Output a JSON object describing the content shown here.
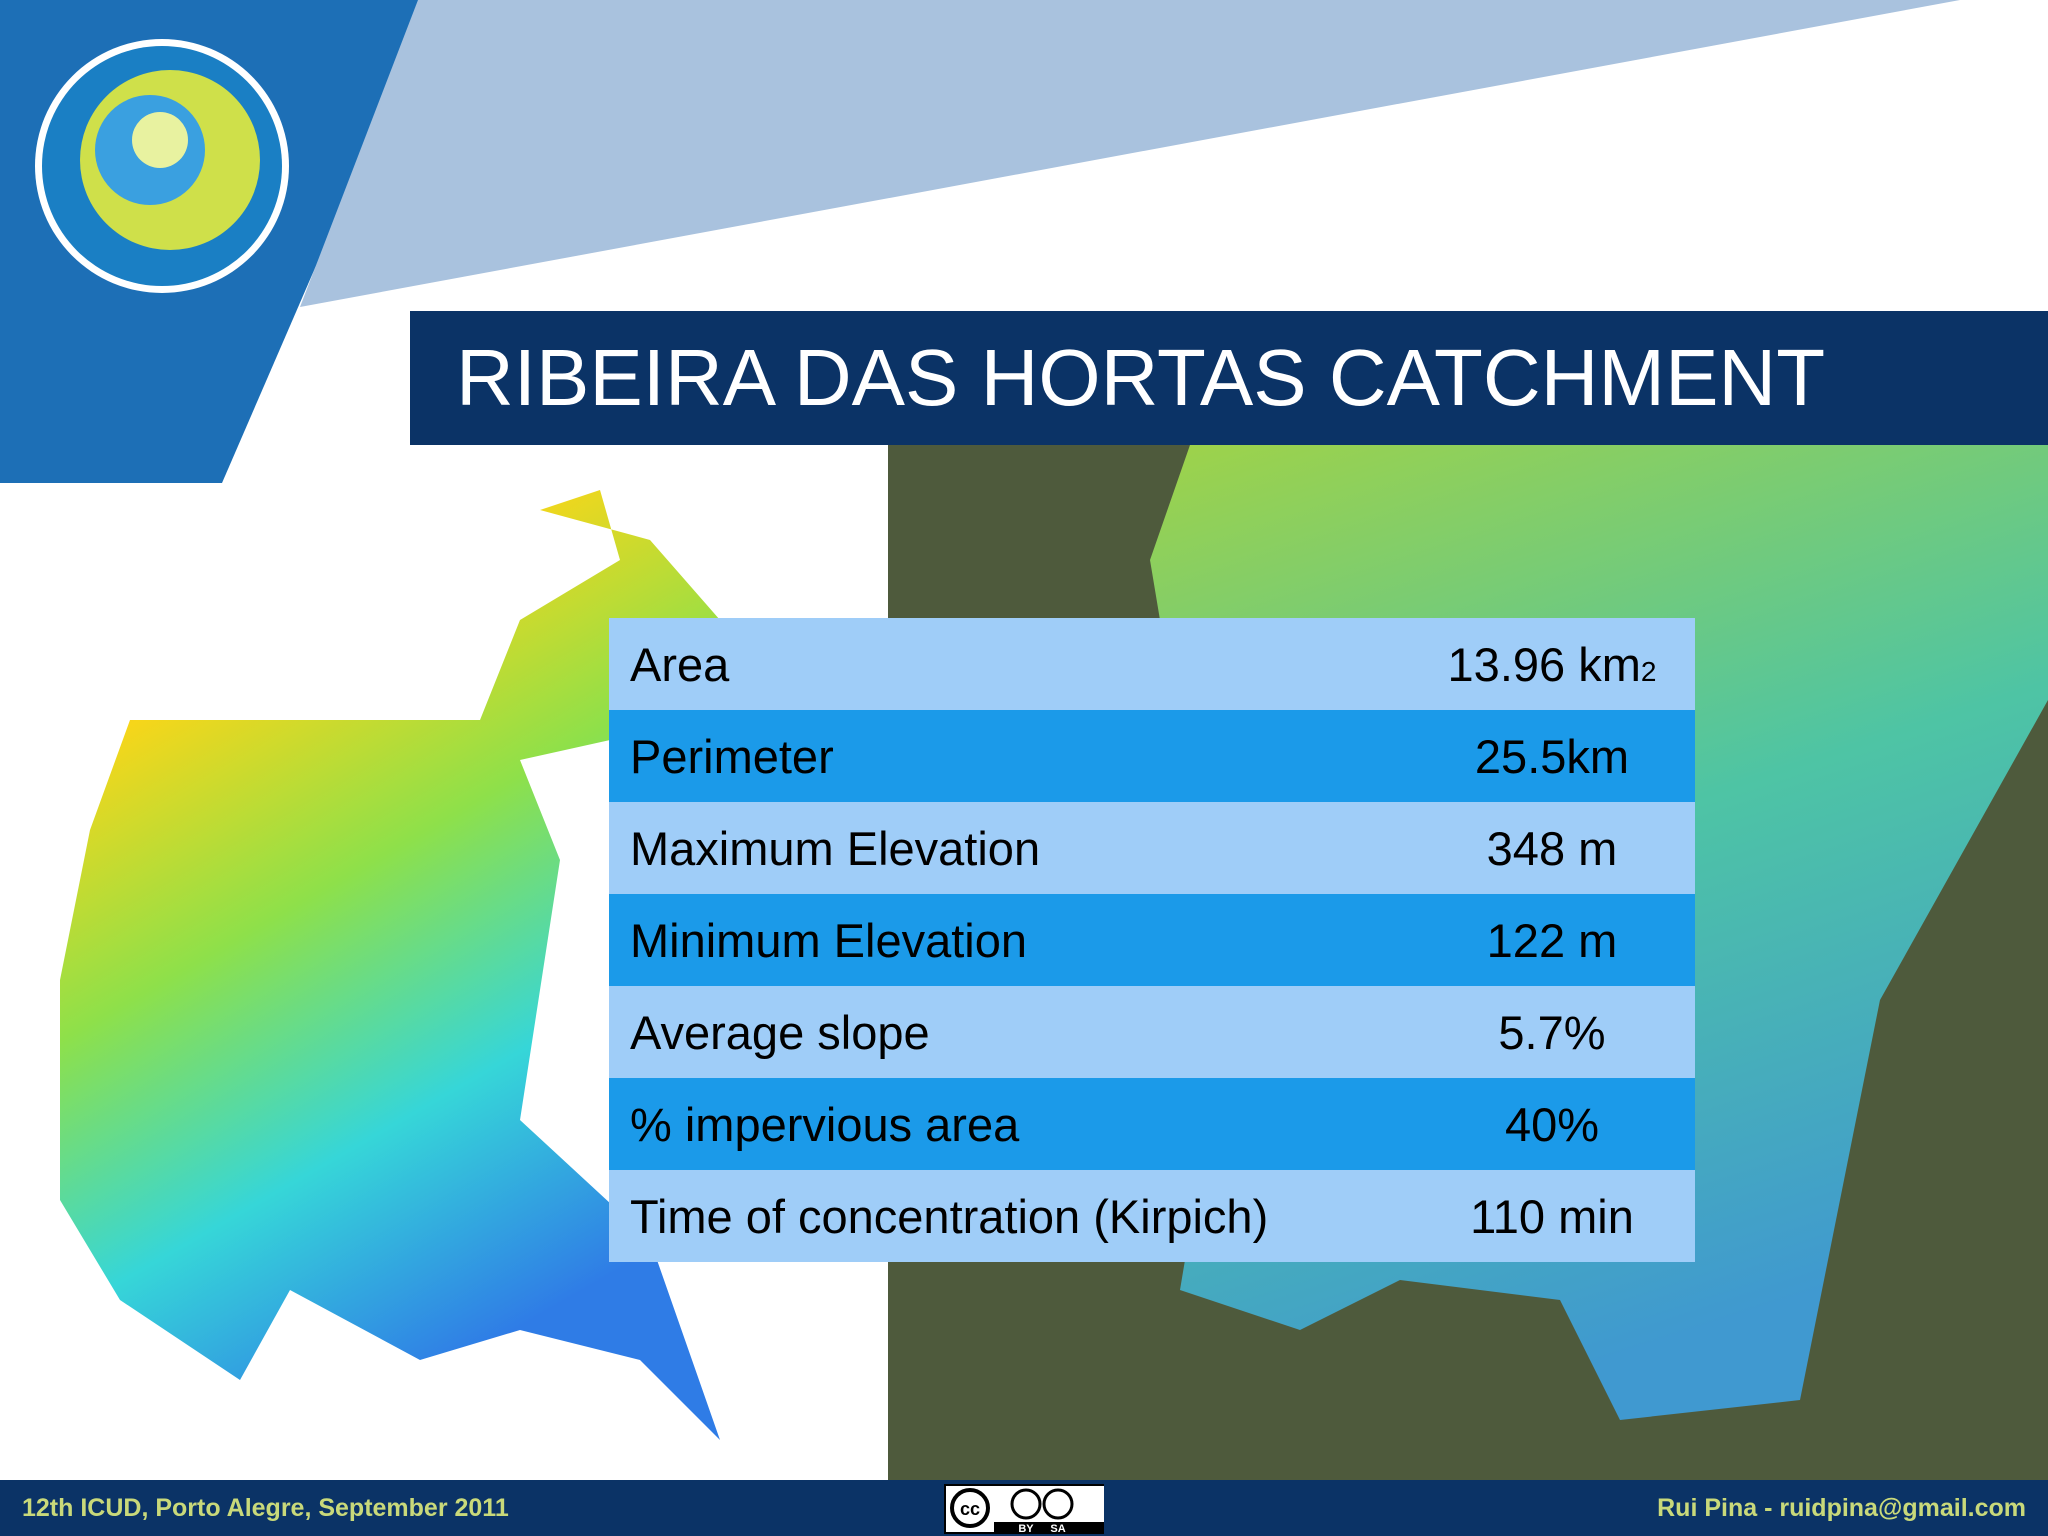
{
  "header": {
    "title": "RIBEIRA DAS HORTAS CATCHMENT"
  },
  "table": {
    "rows": [
      {
        "label": "Area",
        "value": "13.96 km",
        "sup": "2"
      },
      {
        "label": "Perimeter",
        "value": "25.5km"
      },
      {
        "label": "Maximum Elevation",
        "value": "348 m"
      },
      {
        "label": "Minimum Elevation",
        "value": "122 m"
      },
      {
        "label": "Average slope",
        "value": "5.7%"
      },
      {
        "label": "% impervious area",
        "value": "40%"
      },
      {
        "label": "Time of concentration (Kirpich)",
        "value": "110 min"
      }
    ]
  },
  "footer": {
    "left": "12th ICUD, Porto Alegre, September 2011",
    "right": "Rui Pina - ruidpina@gmail.com",
    "license": {
      "badge": "cc",
      "by": "BY",
      "sa": "SA"
    }
  }
}
